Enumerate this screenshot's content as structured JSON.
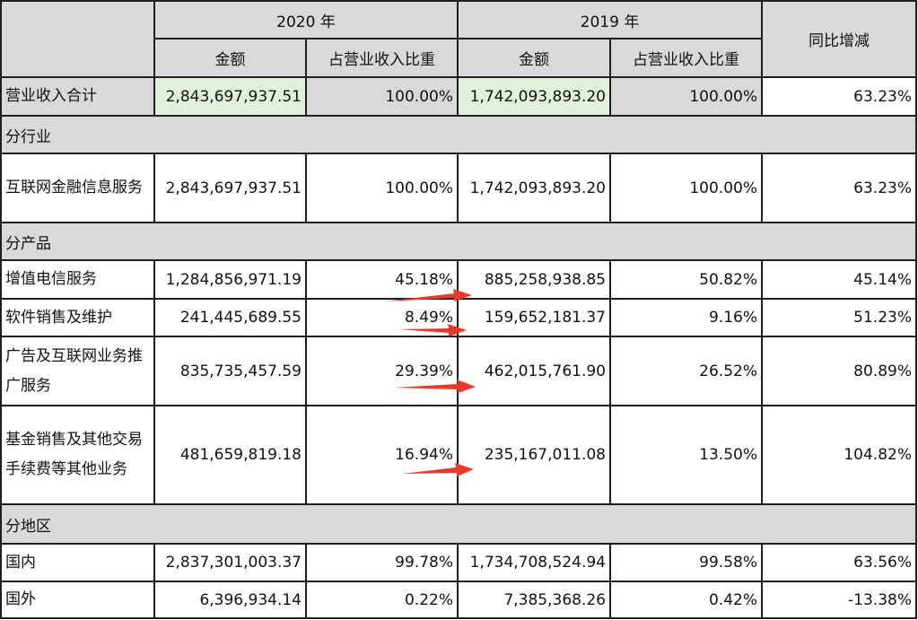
{
  "header": {
    "year2020": "2020 年",
    "year2019": "2019 年",
    "yoy": "同比增减",
    "amount": "金额",
    "share": "占营业收入比重"
  },
  "total": {
    "label": "营业收入合计",
    "amt2020": "2,843,697,937.51",
    "pct2020": "100.00%",
    "amt2019": "1,742,093,893.20",
    "pct2019": "100.00%",
    "yoy": "63.23%"
  },
  "sections": {
    "industry": "分行业",
    "product": "分产品",
    "region": "分地区"
  },
  "industry_rows": [
    {
      "label": "互联网金融信息服务",
      "amt2020": "2,843,697,937.51",
      "pct2020": "100.00%",
      "amt2019": "1,742,093,893.20",
      "pct2019": "100.00%",
      "yoy": "63.23%"
    }
  ],
  "product_rows": [
    {
      "label": "增值电信服务",
      "amt2020": "1,284,856,971.19",
      "pct2020": "45.18%",
      "amt2019": "885,258,938.85",
      "pct2019": "50.82%",
      "yoy": "45.14%"
    },
    {
      "label": "软件销售及维护",
      "amt2020": "241,445,689.55",
      "pct2020": "8.49%",
      "amt2019": "159,652,181.37",
      "pct2019": "9.16%",
      "yoy": "51.23%"
    },
    {
      "label": "广告及互联网业务推广服务",
      "amt2020": "835,735,457.59",
      "pct2020": "29.39%",
      "amt2019": "462,015,761.90",
      "pct2019": "26.52%",
      "yoy": "80.89%"
    },
    {
      "label": "基金销售及其他交易手续费等其他业务",
      "amt2020": "481,659,819.18",
      "pct2020": "16.94%",
      "amt2019": "235,167,011.08",
      "pct2019": "13.50%",
      "yoy": "104.82%"
    }
  ],
  "region_rows": [
    {
      "label": "国内",
      "amt2020": "2,837,301,003.37",
      "pct2020": "99.78%",
      "amt2019": "1,734,708,524.94",
      "pct2019": "99.58%",
      "yoy": "63.56%"
    },
    {
      "label": "国外",
      "amt2020": "6,396,934.14",
      "pct2020": "0.22%",
      "amt2019": "7,385,368.26",
      "pct2019": "0.42%",
      "yoy": "-13.38%"
    }
  ],
  "colors": {
    "header_bg": "#d9d9d9",
    "highlight_bg": "#e2efd9",
    "arrow": "#e8392b",
    "border": "#1e1e1e"
  }
}
